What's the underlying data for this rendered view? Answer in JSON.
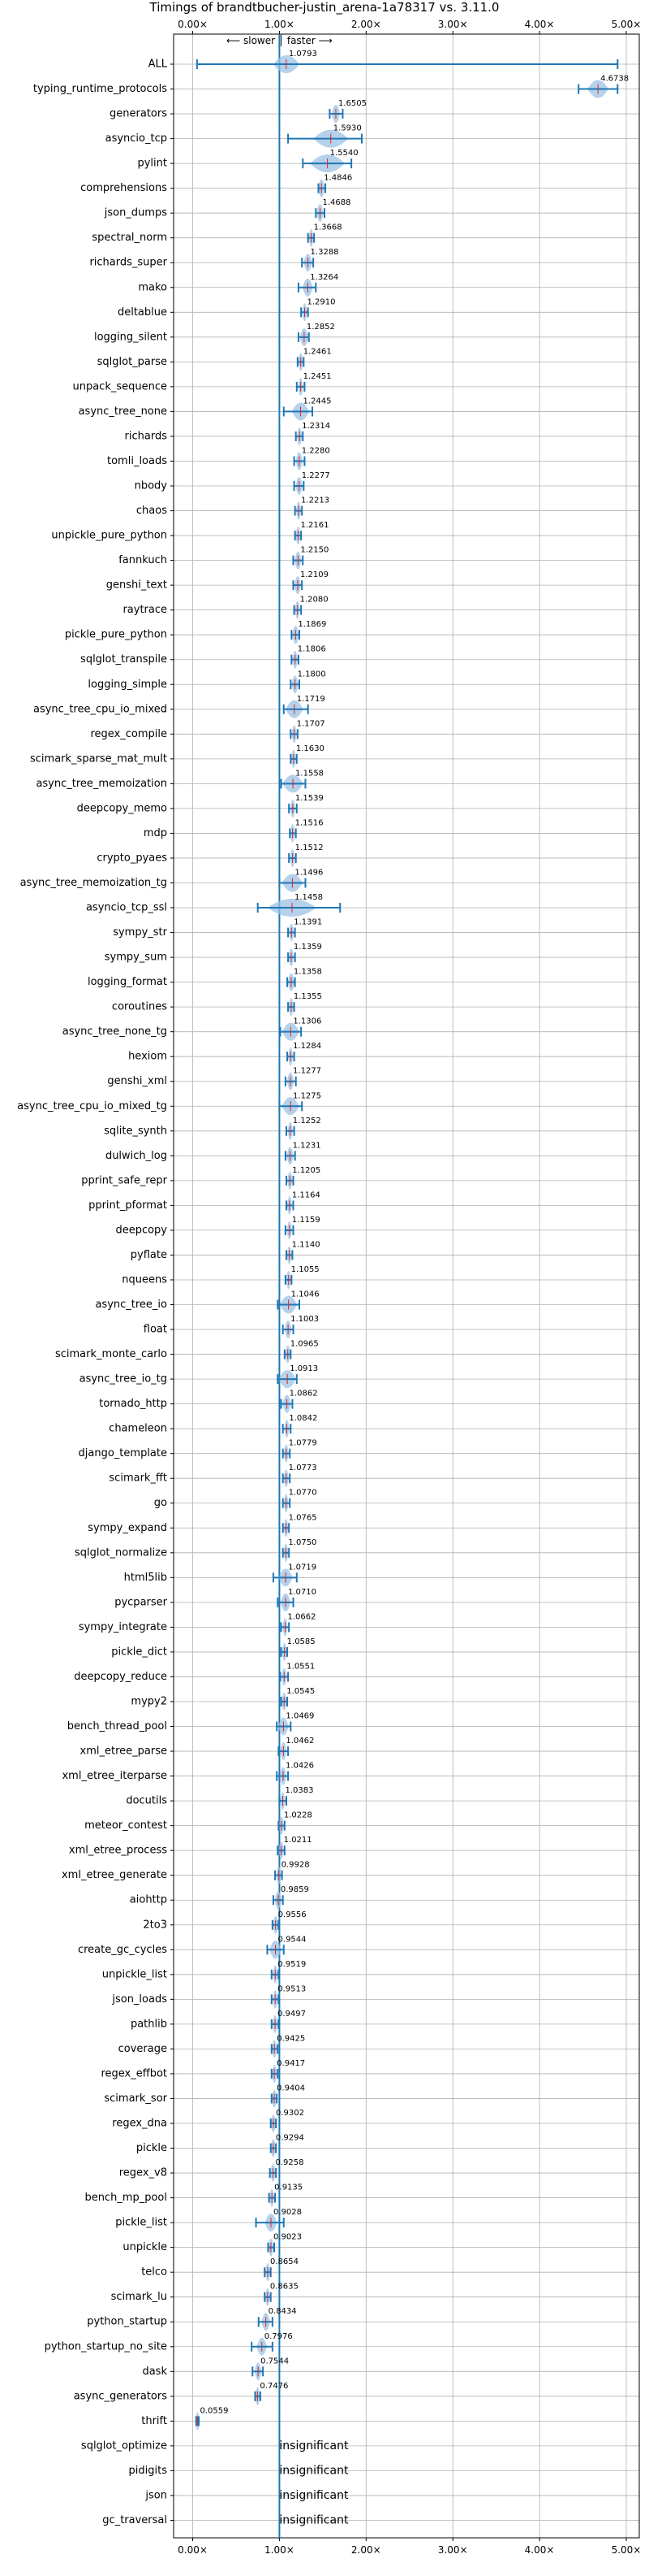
{
  "chart_data": {
    "type": "violin-errorbar",
    "title": "Timings of brandtbucher-justin_arena-1a78317 vs. 3.11.0",
    "direction_annotation": "⟵ slower │ faster ⟶",
    "x_ticks": [
      "0.00×",
      "1.00×",
      "2.00×",
      "3.00×",
      "4.00×",
      "5.00×"
    ],
    "x_tick_values": [
      0,
      1,
      2,
      3,
      4,
      5
    ],
    "xlim": [
      -0.22,
      5.15
    ],
    "reference_line": 1.0,
    "grid": true,
    "colors": {
      "line": "#1f77b4",
      "violin": "#9cc2e5",
      "median": "#d62728",
      "grid": "#b0b0b0"
    },
    "insignificant_label": "insignificant",
    "benchmarks": [
      {
        "name": "ALL",
        "value": 1.0793,
        "label": "1.0793",
        "lo": 0.05,
        "hi": 4.9,
        "spread": 0.15
      },
      {
        "name": "typing_runtime_protocols",
        "value": 4.6738,
        "label": "4.6738",
        "lo": 4.45,
        "hi": 4.9,
        "spread": 0.12
      },
      {
        "name": "generators",
        "value": 1.6505,
        "label": "1.6505",
        "lo": 1.58,
        "hi": 1.73,
        "spread": 0.05
      },
      {
        "name": "asyncio_tcp",
        "value": 1.593,
        "label": "1.5930",
        "lo": 1.1,
        "hi": 1.95,
        "spread": 0.2
      },
      {
        "name": "pylint",
        "value": 1.554,
        "label": "1.5540",
        "lo": 1.27,
        "hi": 1.83,
        "spread": 0.2
      },
      {
        "name": "comprehensions",
        "value": 1.4846,
        "label": "1.4846",
        "lo": 1.45,
        "hi": 1.53,
        "spread": 0.04
      },
      {
        "name": "json_dumps",
        "value": 1.4688,
        "label": "1.4688",
        "lo": 1.42,
        "hi": 1.52,
        "spread": 0.04
      },
      {
        "name": "spectral_norm",
        "value": 1.3668,
        "label": "1.3668",
        "lo": 1.33,
        "hi": 1.4,
        "spread": 0.03
      },
      {
        "name": "richards_super",
        "value": 1.3288,
        "label": "1.3288",
        "lo": 1.26,
        "hi": 1.39,
        "spread": 0.05
      },
      {
        "name": "mako",
        "value": 1.3264,
        "label": "1.3264",
        "lo": 1.22,
        "hi": 1.42,
        "spread": 0.06
      },
      {
        "name": "deltablue",
        "value": 1.291,
        "label": "1.2910",
        "lo": 1.25,
        "hi": 1.33,
        "spread": 0.03
      },
      {
        "name": "logging_silent",
        "value": 1.2852,
        "label": "1.2852",
        "lo": 1.22,
        "hi": 1.34,
        "spread": 0.05
      },
      {
        "name": "sqlglot_parse",
        "value": 1.2461,
        "label": "1.2461",
        "lo": 1.21,
        "hi": 1.28,
        "spread": 0.03
      },
      {
        "name": "unpack_sequence",
        "value": 1.2451,
        "label": "1.2451",
        "lo": 1.2,
        "hi": 1.29,
        "spread": 0.03
      },
      {
        "name": "async_tree_none",
        "value": 1.2445,
        "label": "1.2445",
        "lo": 1.05,
        "hi": 1.38,
        "spread": 0.1
      },
      {
        "name": "richards",
        "value": 1.2314,
        "label": "1.2314",
        "lo": 1.19,
        "hi": 1.27,
        "spread": 0.03
      },
      {
        "name": "tomli_loads",
        "value": 1.228,
        "label": "1.2280",
        "lo": 1.17,
        "hi": 1.29,
        "spread": 0.04
      },
      {
        "name": "nbody",
        "value": 1.2277,
        "label": "1.2277",
        "lo": 1.17,
        "hi": 1.28,
        "spread": 0.04
      },
      {
        "name": "chaos",
        "value": 1.2213,
        "label": "1.2213",
        "lo": 1.18,
        "hi": 1.26,
        "spread": 0.03
      },
      {
        "name": "unpickle_pure_python",
        "value": 1.2161,
        "label": "1.2161",
        "lo": 1.18,
        "hi": 1.25,
        "spread": 0.03
      },
      {
        "name": "fannkuch",
        "value": 1.215,
        "label": "1.2150",
        "lo": 1.16,
        "hi": 1.27,
        "spread": 0.04
      },
      {
        "name": "genshi_text",
        "value": 1.2109,
        "label": "1.2109",
        "lo": 1.16,
        "hi": 1.26,
        "spread": 0.04
      },
      {
        "name": "raytrace",
        "value": 1.208,
        "label": "1.2080",
        "lo": 1.17,
        "hi": 1.25,
        "spread": 0.03
      },
      {
        "name": "pickle_pure_python",
        "value": 1.1869,
        "label": "1.1869",
        "lo": 1.14,
        "hi": 1.23,
        "spread": 0.04
      },
      {
        "name": "sqlglot_transpile",
        "value": 1.1806,
        "label": "1.1806",
        "lo": 1.14,
        "hi": 1.22,
        "spread": 0.03
      },
      {
        "name": "logging_simple",
        "value": 1.18,
        "label": "1.1800",
        "lo": 1.13,
        "hi": 1.23,
        "spread": 0.04
      },
      {
        "name": "async_tree_cpu_io_mixed",
        "value": 1.1719,
        "label": "1.1719",
        "lo": 1.05,
        "hi": 1.33,
        "spread": 0.1
      },
      {
        "name": "regex_compile",
        "value": 1.1707,
        "label": "1.1707",
        "lo": 1.13,
        "hi": 1.21,
        "spread": 0.03
      },
      {
        "name": "scimark_sparse_mat_mult",
        "value": 1.163,
        "label": "1.1630",
        "lo": 1.13,
        "hi": 1.2,
        "spread": 0.03
      },
      {
        "name": "async_tree_memoization",
        "value": 1.1558,
        "label": "1.1558",
        "lo": 1.02,
        "hi": 1.3,
        "spread": 0.12
      },
      {
        "name": "deepcopy_memo",
        "value": 1.1539,
        "label": "1.1539",
        "lo": 1.11,
        "hi": 1.2,
        "spread": 0.03
      },
      {
        "name": "mdp",
        "value": 1.1516,
        "label": "1.1516",
        "lo": 1.12,
        "hi": 1.19,
        "spread": 0.03
      },
      {
        "name": "crypto_pyaes",
        "value": 1.1512,
        "label": "1.1512",
        "lo": 1.11,
        "hi": 1.19,
        "spread": 0.03
      },
      {
        "name": "async_tree_memoization_tg",
        "value": 1.1496,
        "label": "1.1496",
        "lo": 1.0,
        "hi": 1.3,
        "spread": 0.12
      },
      {
        "name": "asyncio_tcp_ssl",
        "value": 1.1458,
        "label": "1.1458",
        "lo": 0.75,
        "hi": 1.7,
        "spread": 0.28
      },
      {
        "name": "sympy_str",
        "value": 1.1391,
        "label": "1.1391",
        "lo": 1.1,
        "hi": 1.18,
        "spread": 0.03
      },
      {
        "name": "sympy_sum",
        "value": 1.1359,
        "label": "1.1359",
        "lo": 1.1,
        "hi": 1.18,
        "spread": 0.03
      },
      {
        "name": "logging_format",
        "value": 1.1358,
        "label": "1.1358",
        "lo": 1.09,
        "hi": 1.18,
        "spread": 0.04
      },
      {
        "name": "coroutines",
        "value": 1.1355,
        "label": "1.1355",
        "lo": 1.1,
        "hi": 1.17,
        "spread": 0.03
      },
      {
        "name": "async_tree_none_tg",
        "value": 1.1306,
        "label": "1.1306",
        "lo": 1.01,
        "hi": 1.25,
        "spread": 0.1
      },
      {
        "name": "hexiom",
        "value": 1.1284,
        "label": "1.1284",
        "lo": 1.09,
        "hi": 1.17,
        "spread": 0.03
      },
      {
        "name": "genshi_xml",
        "value": 1.1277,
        "label": "1.1277",
        "lo": 1.07,
        "hi": 1.19,
        "spread": 0.04
      },
      {
        "name": "async_tree_cpu_io_mixed_tg",
        "value": 1.1275,
        "label": "1.1275",
        "lo": 1.0,
        "hi": 1.26,
        "spread": 0.1
      },
      {
        "name": "sqlite_synth",
        "value": 1.1252,
        "label": "1.1252",
        "lo": 1.08,
        "hi": 1.17,
        "spread": 0.03
      },
      {
        "name": "dulwich_log",
        "value": 1.1231,
        "label": "1.1231",
        "lo": 1.07,
        "hi": 1.18,
        "spread": 0.04
      },
      {
        "name": "pprint_safe_repr",
        "value": 1.1205,
        "label": "1.1205",
        "lo": 1.08,
        "hi": 1.16,
        "spread": 0.03
      },
      {
        "name": "pprint_pformat",
        "value": 1.1164,
        "label": "1.1164",
        "lo": 1.08,
        "hi": 1.16,
        "spread": 0.03
      },
      {
        "name": "deepcopy",
        "value": 1.1159,
        "label": "1.1159",
        "lo": 1.07,
        "hi": 1.16,
        "spread": 0.03
      },
      {
        "name": "pyflate",
        "value": 1.114,
        "label": "1.1140",
        "lo": 1.08,
        "hi": 1.15,
        "spread": 0.03
      },
      {
        "name": "nqueens",
        "value": 1.1055,
        "label": "1.1055",
        "lo": 1.07,
        "hi": 1.14,
        "spread": 0.03
      },
      {
        "name": "async_tree_io",
        "value": 1.1046,
        "label": "1.1046",
        "lo": 0.98,
        "hi": 1.23,
        "spread": 0.1
      },
      {
        "name": "float",
        "value": 1.1003,
        "label": "1.1003",
        "lo": 1.04,
        "hi": 1.16,
        "spread": 0.04
      },
      {
        "name": "scimark_monte_carlo",
        "value": 1.0965,
        "label": "1.0965",
        "lo": 1.06,
        "hi": 1.13,
        "spread": 0.03
      },
      {
        "name": "async_tree_io_tg",
        "value": 1.0913,
        "label": "1.0913",
        "lo": 0.98,
        "hi": 1.2,
        "spread": 0.1
      },
      {
        "name": "tornado_http",
        "value": 1.0862,
        "label": "1.0862",
        "lo": 1.02,
        "hi": 1.15,
        "spread": 0.05
      },
      {
        "name": "chameleon",
        "value": 1.0842,
        "label": "1.0842",
        "lo": 1.04,
        "hi": 1.13,
        "spread": 0.03
      },
      {
        "name": "django_template",
        "value": 1.0779,
        "label": "1.0779",
        "lo": 1.04,
        "hi": 1.12,
        "spread": 0.03
      },
      {
        "name": "scimark_fft",
        "value": 1.0773,
        "label": "1.0773",
        "lo": 1.04,
        "hi": 1.12,
        "spread": 0.03
      },
      {
        "name": "go",
        "value": 1.077,
        "label": "1.0770",
        "lo": 1.04,
        "hi": 1.12,
        "spread": 0.03
      },
      {
        "name": "sympy_expand",
        "value": 1.0765,
        "label": "1.0765",
        "lo": 1.04,
        "hi": 1.11,
        "spread": 0.03
      },
      {
        "name": "sqlglot_normalize",
        "value": 1.075,
        "label": "1.0750",
        "lo": 1.04,
        "hi": 1.11,
        "spread": 0.03
      },
      {
        "name": "html5lib",
        "value": 1.0719,
        "label": "1.0719",
        "lo": 0.93,
        "hi": 1.2,
        "spread": 0.08
      },
      {
        "name": "pycparser",
        "value": 1.071,
        "label": "1.0710",
        "lo": 0.98,
        "hi": 1.16,
        "spread": 0.06
      },
      {
        "name": "sympy_integrate",
        "value": 1.0662,
        "label": "1.0662",
        "lo": 1.02,
        "hi": 1.11,
        "spread": 0.03
      },
      {
        "name": "pickle_dict",
        "value": 1.0585,
        "label": "1.0585",
        "lo": 1.02,
        "hi": 1.09,
        "spread": 0.03
      },
      {
        "name": "deepcopy_reduce",
        "value": 1.0551,
        "label": "1.0551",
        "lo": 1.01,
        "hi": 1.1,
        "spread": 0.03
      },
      {
        "name": "mypy2",
        "value": 1.0545,
        "label": "1.0545",
        "lo": 1.02,
        "hi": 1.09,
        "spread": 0.03
      },
      {
        "name": "bench_thread_pool",
        "value": 1.0469,
        "label": "1.0469",
        "lo": 0.97,
        "hi": 1.13,
        "spread": 0.06
      },
      {
        "name": "xml_etree_parse",
        "value": 1.0462,
        "label": "1.0462",
        "lo": 0.99,
        "hi": 1.1,
        "spread": 0.04
      },
      {
        "name": "xml_etree_iterparse",
        "value": 1.0426,
        "label": "1.0426",
        "lo": 0.97,
        "hi": 1.1,
        "spread": 0.04
      },
      {
        "name": "docutils",
        "value": 1.0383,
        "label": "1.0383",
        "lo": 1.0,
        "hi": 1.08,
        "spread": 0.03
      },
      {
        "name": "meteor_contest",
        "value": 1.0228,
        "label": "1.0228",
        "lo": 0.99,
        "hi": 1.06,
        "spread": 0.03
      },
      {
        "name": "xml_etree_process",
        "value": 1.0211,
        "label": "1.0211",
        "lo": 0.98,
        "hi": 1.06,
        "spread": 0.03
      },
      {
        "name": "xml_etree_generate",
        "value": 0.9928,
        "label": "0.9928",
        "lo": 0.95,
        "hi": 1.03,
        "spread": 0.03
      },
      {
        "name": "aiohttp",
        "value": 0.9859,
        "label": "0.9859",
        "lo": 0.93,
        "hi": 1.04,
        "spread": 0.04
      },
      {
        "name": "2to3",
        "value": 0.9556,
        "label": "0.9556",
        "lo": 0.92,
        "hi": 0.99,
        "spread": 0.03
      },
      {
        "name": "create_gc_cycles",
        "value": 0.9544,
        "label": "0.9544",
        "lo": 0.86,
        "hi": 1.05,
        "spread": 0.07
      },
      {
        "name": "unpickle_list",
        "value": 0.9519,
        "label": "0.9519",
        "lo": 0.91,
        "hi": 0.99,
        "spread": 0.03
      },
      {
        "name": "json_loads",
        "value": 0.9513,
        "label": "0.9513",
        "lo": 0.91,
        "hi": 0.99,
        "spread": 0.03
      },
      {
        "name": "pathlib",
        "value": 0.9497,
        "label": "0.9497",
        "lo": 0.91,
        "hi": 0.99,
        "spread": 0.03
      },
      {
        "name": "coverage",
        "value": 0.9425,
        "label": "0.9425",
        "lo": 0.91,
        "hi": 0.98,
        "spread": 0.03
      },
      {
        "name": "regex_effbot",
        "value": 0.9417,
        "label": "0.9417",
        "lo": 0.91,
        "hi": 0.98,
        "spread": 0.03
      },
      {
        "name": "scimark_sor",
        "value": 0.9404,
        "label": "0.9404",
        "lo": 0.91,
        "hi": 0.97,
        "spread": 0.03
      },
      {
        "name": "regex_dna",
        "value": 0.9302,
        "label": "0.9302",
        "lo": 0.9,
        "hi": 0.96,
        "spread": 0.03
      },
      {
        "name": "pickle",
        "value": 0.9294,
        "label": "0.9294",
        "lo": 0.9,
        "hi": 0.96,
        "spread": 0.03
      },
      {
        "name": "regex_v8",
        "value": 0.9258,
        "label": "0.9258",
        "lo": 0.89,
        "hi": 0.96,
        "spread": 0.03
      },
      {
        "name": "bench_mp_pool",
        "value": 0.9135,
        "label": "0.9135",
        "lo": 0.88,
        "hi": 0.95,
        "spread": 0.03
      },
      {
        "name": "pickle_list",
        "value": 0.9028,
        "label": "0.9028",
        "lo": 0.73,
        "hi": 1.05,
        "spread": 0.07
      },
      {
        "name": "unpickle",
        "value": 0.9023,
        "label": "0.9023",
        "lo": 0.87,
        "hi": 0.94,
        "spread": 0.03
      },
      {
        "name": "telco",
        "value": 0.8654,
        "label": "0.8654",
        "lo": 0.83,
        "hi": 0.9,
        "spread": 0.03
      },
      {
        "name": "scimark_lu",
        "value": 0.8635,
        "label": "0.8635",
        "lo": 0.83,
        "hi": 0.9,
        "spread": 0.03
      },
      {
        "name": "python_startup",
        "value": 0.8434,
        "label": "0.8434",
        "lo": 0.76,
        "hi": 0.92,
        "spread": 0.05
      },
      {
        "name": "python_startup_no_site",
        "value": 0.7976,
        "label": "0.7976",
        "lo": 0.68,
        "hi": 0.92,
        "spread": 0.06
      },
      {
        "name": "dask",
        "value": 0.7544,
        "label": "0.7544",
        "lo": 0.69,
        "hi": 0.81,
        "spread": 0.04
      },
      {
        "name": "async_generators",
        "value": 0.7476,
        "label": "0.7476",
        "lo": 0.72,
        "hi": 0.78,
        "spread": 0.03
      },
      {
        "name": "thrift",
        "value": 0.0559,
        "label": "0.0559",
        "lo": 0.04,
        "hi": 0.07,
        "spread": 0.02
      },
      {
        "name": "sqlglot_optimize",
        "value": null,
        "label": "",
        "insignificant": true
      },
      {
        "name": "pidigits",
        "value": null,
        "label": "",
        "insignificant": true
      },
      {
        "name": "json",
        "value": null,
        "label": "",
        "insignificant": true
      },
      {
        "name": "gc_traversal",
        "value": null,
        "label": "",
        "insignificant": true
      }
    ]
  }
}
